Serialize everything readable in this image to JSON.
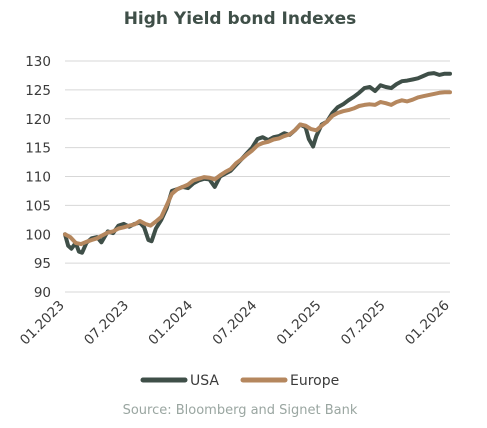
{
  "chart_data": {
    "type": "line",
    "title": "High Yield bond Indexes",
    "xlabel": "",
    "ylabel": "",
    "ylim": [
      90,
      130
    ],
    "yticks": [
      90,
      95,
      100,
      105,
      110,
      115,
      120,
      125,
      130
    ],
    "xlim": [
      0,
      36
    ],
    "xticks": [
      {
        "x": 0,
        "label": "01.2023"
      },
      {
        "x": 6,
        "label": "07.2023"
      },
      {
        "x": 12,
        "label": "01.2024"
      },
      {
        "x": 18,
        "label": "07.2024"
      },
      {
        "x": 24,
        "label": "01.2025"
      },
      {
        "x": 30,
        "label": "07.2025"
      },
      {
        "x": 36,
        "label": "01.2026"
      }
    ],
    "grid": true,
    "legend": "bottom",
    "series": [
      {
        "name": "USA",
        "color": "#3f4f48",
        "points": [
          [
            0,
            100
          ],
          [
            0.3,
            98
          ],
          [
            0.6,
            97.5
          ],
          [
            1,
            98.5
          ],
          [
            1.3,
            97
          ],
          [
            1.6,
            96.8
          ],
          [
            2,
            98.5
          ],
          [
            2.5,
            99.3
          ],
          [
            3,
            99.5
          ],
          [
            3.4,
            98.6
          ],
          [
            4,
            100.5
          ],
          [
            4.5,
            100.2
          ],
          [
            5,
            101.5
          ],
          [
            5.5,
            101.8
          ],
          [
            6,
            101.3
          ],
          [
            6.5,
            101.8
          ],
          [
            7,
            102
          ],
          [
            7.4,
            101.2
          ],
          [
            7.8,
            99
          ],
          [
            8.1,
            98.8
          ],
          [
            8.5,
            101
          ],
          [
            9,
            102.5
          ],
          [
            9.5,
            104.5
          ],
          [
            10,
            107.5
          ],
          [
            10.5,
            107.8
          ],
          [
            11,
            108.2
          ],
          [
            11.5,
            108
          ],
          [
            12,
            108.8
          ],
          [
            12.5,
            109.3
          ],
          [
            13,
            109.6
          ],
          [
            13.5,
            109.5
          ],
          [
            14,
            108.2
          ],
          [
            14.5,
            110
          ],
          [
            15,
            110.5
          ],
          [
            15.5,
            111
          ],
          [
            16,
            112
          ],
          [
            16.5,
            113
          ],
          [
            17,
            114
          ],
          [
            17.5,
            115
          ],
          [
            18,
            116.5
          ],
          [
            18.5,
            116.8
          ],
          [
            19,
            116.3
          ],
          [
            19.5,
            116.8
          ],
          [
            20,
            117
          ],
          [
            20.5,
            117.5
          ],
          [
            21,
            117.2
          ],
          [
            21.5,
            118
          ],
          [
            22,
            119
          ],
          [
            22.5,
            118.5
          ],
          [
            22.8,
            116.5
          ],
          [
            23.2,
            115.2
          ],
          [
            23.5,
            117
          ],
          [
            24,
            119
          ],
          [
            24.5,
            119.5
          ],
          [
            25,
            121
          ],
          [
            25.5,
            122
          ],
          [
            26,
            122.5
          ],
          [
            26.5,
            123.2
          ],
          [
            27,
            123.8
          ],
          [
            27.5,
            124.5
          ],
          [
            28,
            125.3
          ],
          [
            28.5,
            125.5
          ],
          [
            29,
            124.8
          ],
          [
            29.5,
            125.8
          ],
          [
            30,
            125.5
          ],
          [
            30.5,
            125.3
          ],
          [
            31,
            126
          ],
          [
            31.5,
            126.5
          ],
          [
            32,
            126.6
          ],
          [
            32.5,
            126.8
          ],
          [
            33,
            127
          ],
          [
            33.5,
            127.4
          ],
          [
            34,
            127.8
          ],
          [
            34.5,
            127.9
          ],
          [
            35,
            127.6
          ],
          [
            35.5,
            127.8
          ],
          [
            36,
            127.8
          ]
        ]
      },
      {
        "name": "Europe",
        "color": "#b5875e",
        "points": [
          [
            0,
            100
          ],
          [
            0.5,
            99.5
          ],
          [
            1,
            98.5
          ],
          [
            1.5,
            98.3
          ],
          [
            2,
            98.7
          ],
          [
            2.5,
            99
          ],
          [
            3,
            99.3
          ],
          [
            3.5,
            99.8
          ],
          [
            4,
            100.3
          ],
          [
            4.5,
            100.5
          ],
          [
            5,
            101
          ],
          [
            5.5,
            101.2
          ],
          [
            6,
            101.5
          ],
          [
            6.5,
            101.7
          ],
          [
            7,
            102.3
          ],
          [
            7.5,
            101.8
          ],
          [
            8,
            101.5
          ],
          [
            8.5,
            102.2
          ],
          [
            9,
            103
          ],
          [
            9.5,
            105
          ],
          [
            10,
            107
          ],
          [
            10.5,
            107.8
          ],
          [
            11,
            108.2
          ],
          [
            11.5,
            108.6
          ],
          [
            12,
            109.3
          ],
          [
            12.5,
            109.6
          ],
          [
            13,
            109.9
          ],
          [
            13.5,
            109.8
          ],
          [
            14,
            109.5
          ],
          [
            14.5,
            110.2
          ],
          [
            15,
            110.8
          ],
          [
            15.5,
            111.3
          ],
          [
            16,
            112.3
          ],
          [
            16.5,
            113
          ],
          [
            17,
            113.8
          ],
          [
            17.5,
            114.5
          ],
          [
            18,
            115.4
          ],
          [
            18.5,
            115.8
          ],
          [
            19,
            116
          ],
          [
            19.5,
            116.4
          ],
          [
            20,
            116.6
          ],
          [
            20.5,
            117
          ],
          [
            21,
            117.3
          ],
          [
            21.5,
            118
          ],
          [
            22,
            119
          ],
          [
            22.5,
            118.8
          ],
          [
            23,
            118.2
          ],
          [
            23.5,
            118
          ],
          [
            24,
            118.8
          ],
          [
            24.5,
            119.5
          ],
          [
            25,
            120.5
          ],
          [
            25.5,
            121
          ],
          [
            26,
            121.3
          ],
          [
            26.5,
            121.5
          ],
          [
            27,
            121.8
          ],
          [
            27.5,
            122.2
          ],
          [
            28,
            122.4
          ],
          [
            28.5,
            122.5
          ],
          [
            29,
            122.4
          ],
          [
            29.5,
            122.9
          ],
          [
            30,
            122.7
          ],
          [
            30.5,
            122.4
          ],
          [
            31,
            122.9
          ],
          [
            31.5,
            123.2
          ],
          [
            32,
            123
          ],
          [
            32.5,
            123.3
          ],
          [
            33,
            123.7
          ],
          [
            33.5,
            123.9
          ],
          [
            34,
            124.1
          ],
          [
            34.5,
            124.3
          ],
          [
            35,
            124.5
          ],
          [
            35.5,
            124.6
          ],
          [
            36,
            124.6
          ]
        ]
      }
    ],
    "source": "Source: Bloomberg and Signet Bank"
  }
}
